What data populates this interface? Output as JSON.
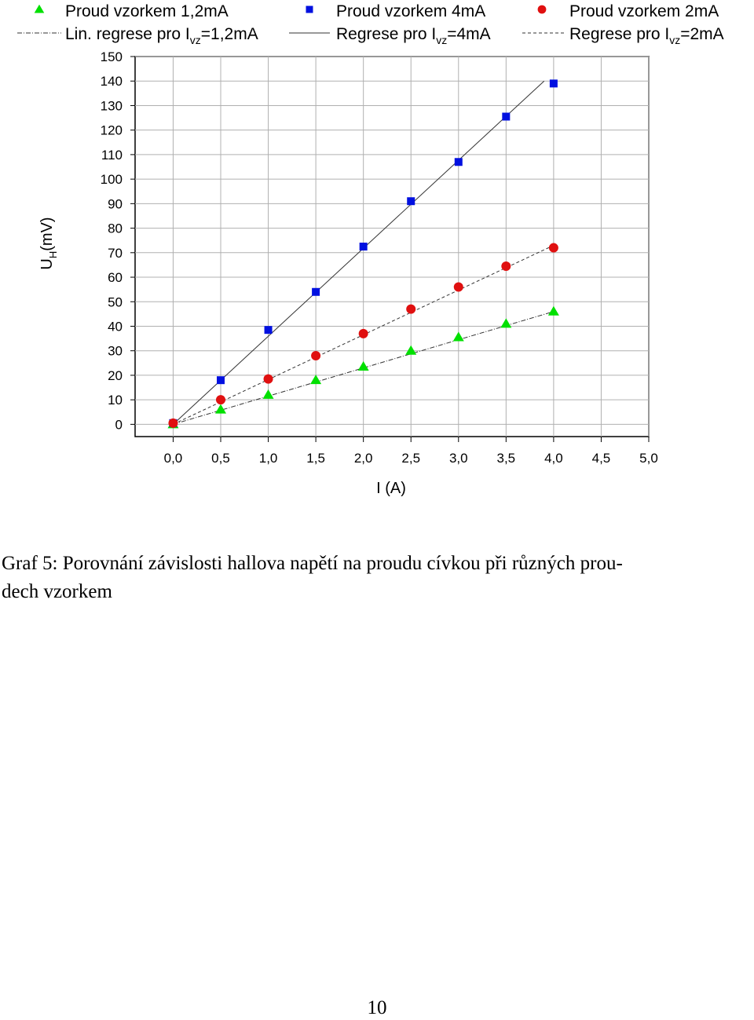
{
  "chart_data": {
    "type": "scatter",
    "x_label": "I (A)",
    "y_label": {
      "main": "U",
      "sub": "H",
      "suffix": "(mV)"
    },
    "x": [
      0,
      0.5,
      1,
      1.5,
      2,
      2.5,
      3,
      3.5,
      4
    ],
    "series": [
      {
        "name": "Proud vzorkem 1,2mA",
        "color": "#00e000",
        "marker": "triangle",
        "values": [
          0,
          6,
          12,
          18,
          23.5,
          30,
          35.5,
          41,
          46
        ]
      },
      {
        "name": "Proud vzorkem 4mA",
        "color": "#0010e0",
        "marker": "square",
        "values": [
          0.5,
          18,
          38.5,
          54,
          72.5,
          91,
          107,
          125.5,
          139
        ]
      },
      {
        "name": "Proud vzorkem 2mA",
        "color": "#e01010",
        "marker": "circle",
        "values": [
          0.5,
          10,
          18.5,
          28,
          37,
          47,
          56,
          64.5,
          72
        ]
      }
    ],
    "regressions": [
      {
        "name": {
          "prefix": "Lin. regrese pro I",
          "sub": "vz",
          "suffix": "=1,2mA"
        },
        "color": "#333333",
        "line_style": "dashdot",
        "x": [
          0,
          4
        ],
        "values": [
          0,
          46
        ]
      },
      {
        "name": {
          "prefix": "Regrese pro I",
          "sub": "vz",
          "suffix": "=4mA"
        },
        "color": "#333333",
        "line_style": "solid",
        "x": [
          0,
          3.9
        ],
        "values": [
          0,
          140
        ]
      },
      {
        "name": {
          "prefix": "Regrese pro I",
          "sub": "vz",
          "suffix": "=2mA"
        },
        "color": "#333333",
        "line_style": "dashed",
        "x": [
          0,
          4
        ],
        "values": [
          0,
          73
        ]
      }
    ],
    "xlim": [
      -0.4,
      5.0
    ],
    "ylim": [
      -5,
      150
    ],
    "xticks": [
      {
        "value": 0,
        "label": "0,0"
      },
      {
        "value": 0.5,
        "label": "0,5"
      },
      {
        "value": 1,
        "label": "1,0"
      },
      {
        "value": 1.5,
        "label": "1,5"
      },
      {
        "value": 2,
        "label": "2,0"
      },
      {
        "value": 2.5,
        "label": "2,5"
      },
      {
        "value": 3,
        "label": "3,0"
      },
      {
        "value": 3.5,
        "label": "3,5"
      },
      {
        "value": 4,
        "label": "4,0"
      },
      {
        "value": 4.5,
        "label": "4,5"
      },
      {
        "value": 5,
        "label": "5,0"
      }
    ],
    "yticks": [
      0,
      10,
      20,
      30,
      40,
      50,
      60,
      70,
      80,
      90,
      100,
      110,
      120,
      130,
      140,
      150
    ],
    "grid": true
  },
  "caption": [
    "Graf 5: Porovnání závislosti hallova napětí na proudu cívkou při různých prou-",
    "dech vzorkem"
  ],
  "page_number": "10"
}
